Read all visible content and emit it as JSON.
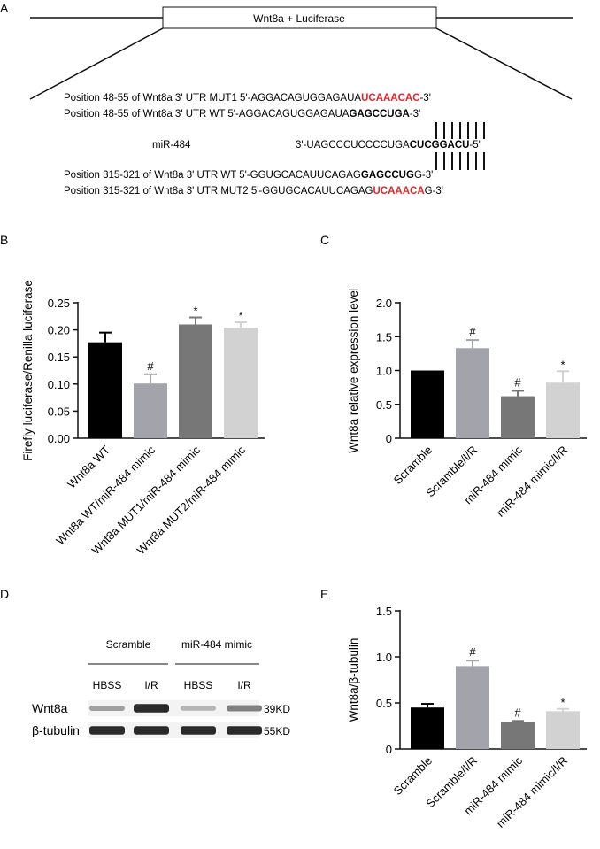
{
  "panel_a": {
    "letter": "A",
    "construct_label": "Wnt8a + Luciferase",
    "lines": [
      {
        "prefix": "Position   48-55  of Wnt8a 3' UTR MUT1  5'-AGGACAGUGGAGAUA",
        "highlight": "UCAAACAC",
        "suffix": "-3'",
        "style": "red"
      },
      {
        "prefix": "Position   48-55  of Wnt8a 3' UTR WT  5'-AGGACAGUGGAGAUA",
        "highlight": "GAGCCUGA",
        "suffix": "-3'",
        "style": "bold"
      },
      {
        "prefix": "miR-484",
        "highlight": "",
        "suffix": "",
        "style": "plain"
      },
      {
        "prefix": "3'-UAGCCCUCCCCUGA",
        "highlight": "CUCGGACU",
        "suffix": "-5'",
        "style": "bold"
      },
      {
        "prefix": "Position 315-321 of Wnt8a 3' UTR WT  5'-GGUGCACAUUCAGAG",
        "highlight": "GAGCCUG",
        "suffix": "G-3'",
        "style": "bold"
      },
      {
        "prefix": "Position 315-321 of Wnt8a 3' UTR MUT2  5'-GGUGCACAUUCAGAG",
        "highlight": "UCAAACA",
        "suffix": "G-3'",
        "style": "red"
      }
    ]
  },
  "chart_data": [
    {
      "panel": "B",
      "type": "bar",
      "ylabel": "Firefly luciferase/Renilla luciferase",
      "ylim": [
        0,
        0.25
      ],
      "yticks": [
        "0.00",
        "0.05",
        "0.10",
        "0.15",
        "0.20",
        "0.25"
      ],
      "categories": [
        "Wnt8a WT",
        "Wnt8a WT/miR-484 mimic",
        "Wnt8a MUT1/miR-484 mimic",
        "Wnt8a MUT2/miR-484 mimic"
      ],
      "values": [
        0.177,
        0.101,
        0.21,
        0.204
      ],
      "errors": [
        0.018,
        0.017,
        0.013,
        0.01
      ],
      "significance": [
        "",
        "#",
        "*",
        "*"
      ],
      "colors": [
        "#000000",
        "#a3a3ab",
        "#777777",
        "#d2d2d2"
      ]
    },
    {
      "panel": "C",
      "type": "bar",
      "ylabel": "Wnt8a relative expression level",
      "ylim": [
        0,
        2.0
      ],
      "yticks": [
        "0",
        "0.5",
        "1.0",
        "1.5",
        "2.0"
      ],
      "categories": [
        "Scramble",
        "Scramble/I/R",
        "miR-484 mimic",
        "miR-484 mimic/I/R"
      ],
      "values": [
        1.0,
        1.33,
        0.62,
        0.82
      ],
      "errors": [
        0.0,
        0.12,
        0.08,
        0.17
      ],
      "significance": [
        "",
        "#",
        "#",
        "*"
      ],
      "colors": [
        "#000000",
        "#a3a3ab",
        "#777777",
        "#d2d2d2"
      ]
    },
    {
      "panel": "E",
      "type": "bar",
      "ylabel": "Wnt8a/β-tubulin",
      "ylim": [
        0,
        1.5
      ],
      "yticks": [
        "0",
        "0.5",
        "1.0",
        "1.5"
      ],
      "categories": [
        "Scramble",
        "Scramble/I/R",
        "miR-484 mimic",
        "miR-484 mimic/I/R"
      ],
      "values": [
        0.45,
        0.9,
        0.29,
        0.41
      ],
      "errors": [
        0.04,
        0.06,
        0.015,
        0.025
      ],
      "significance": [
        "",
        "#",
        "#",
        "*"
      ],
      "colors": [
        "#000000",
        "#a3a3ab",
        "#777777",
        "#d2d2d2"
      ]
    }
  ],
  "panel_d": {
    "letter": "D",
    "groups": [
      "Scramble",
      "miR-484 mimic"
    ],
    "lanes": [
      "HBSS",
      "I/R",
      "HBSS",
      "I/R"
    ],
    "proteins": [
      {
        "name": "Wnt8a",
        "size": "39KD",
        "intensity": [
          0.35,
          0.9,
          0.25,
          0.5
        ]
      },
      {
        "name": "β-tubulin",
        "size": "55KD",
        "intensity": [
          0.9,
          0.9,
          0.9,
          0.9
        ]
      }
    ]
  },
  "letters": {
    "b": "B",
    "c": "C",
    "e": "E"
  }
}
